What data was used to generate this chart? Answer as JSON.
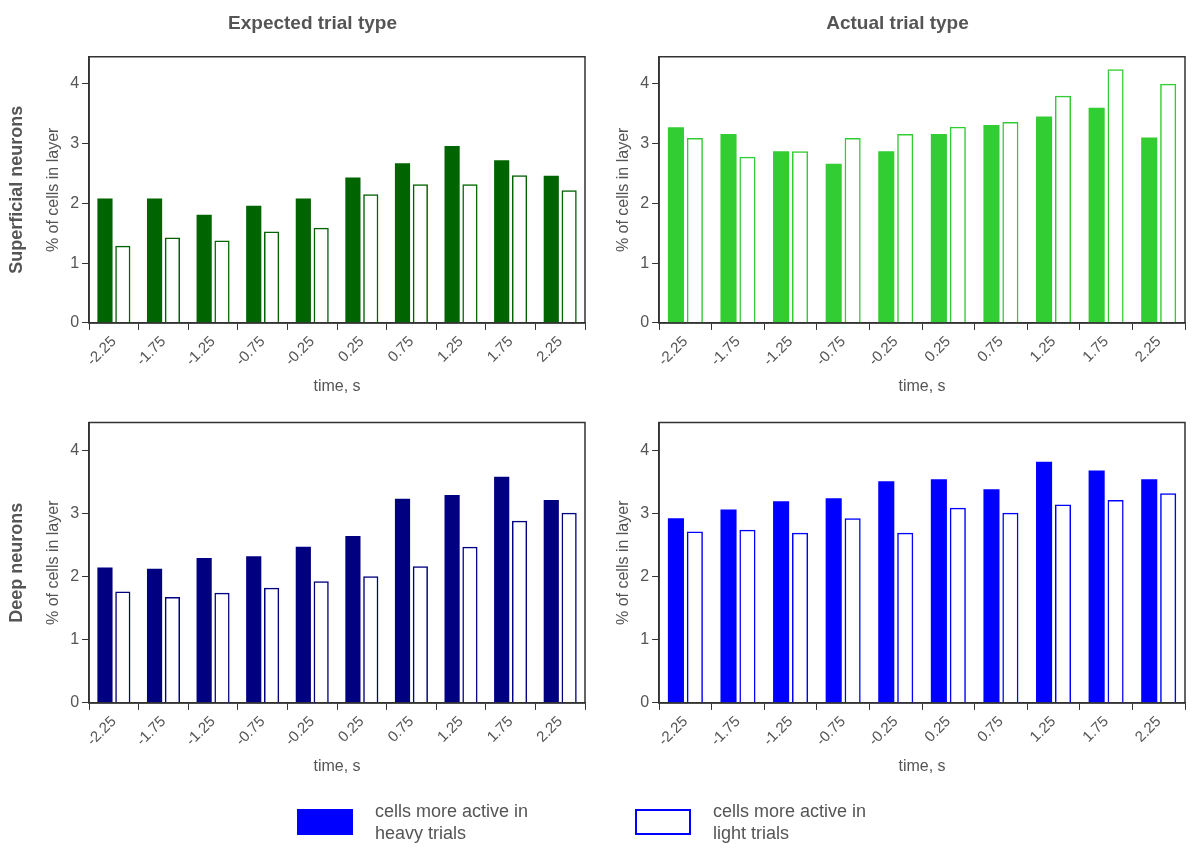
{
  "chart_data": [
    {
      "type": "bar",
      "title": "Expected trial type",
      "xlabel": "time, s",
      "ylabel": "% of cells in layer",
      "annotations": [
        "Superficial neurons"
      ],
      "categories": [
        "-2.25",
        "-1.75",
        "-1.25",
        "-0.75",
        "-0.25",
        "0.25",
        "0.75",
        "1.25",
        "1.75",
        "2.25"
      ],
      "series": [
        {
          "color": "#006400",
          "values": [
            2.08,
            2.08,
            1.81,
            1.96,
            2.08,
            2.43,
            2.67,
            2.96,
            2.72,
            2.46
          ]
        },
        {
          "color": "#006400",
          "values": [
            1.29,
            1.43,
            1.38,
            1.53,
            1.59,
            2.15,
            2.32,
            2.32,
            2.47,
            2.22
          ]
        }
      ],
      "ylim": [
        0,
        4.45
      ],
      "yticks": [
        0,
        1,
        2,
        3,
        4
      ],
      "grid": false
    },
    {
      "type": "bar",
      "title": "Actual trial type",
      "xlabel": "time, s",
      "ylabel": "% of cells in layer",
      "categories": [
        "-2.25",
        "-1.75",
        "-1.25",
        "-0.75",
        "-0.25",
        "0.25",
        "0.75",
        "1.25",
        "1.75",
        "2.25"
      ],
      "series": [
        {
          "color": "#32cd32",
          "values": [
            3.27,
            3.16,
            2.87,
            2.66,
            2.87,
            3.16,
            3.31,
            3.45,
            3.6,
            3.1
          ]
        },
        {
          "color": "#32cd32",
          "values": [
            3.09,
            2.78,
            2.87,
            3.09,
            3.16,
            3.28,
            3.36,
            3.8,
            4.24,
            4.0
          ]
        }
      ],
      "ylim": [
        0,
        4.45
      ],
      "yticks": [
        0,
        1,
        2,
        3,
        4
      ],
      "grid": false
    },
    {
      "type": "bar",
      "xlabel": "time, s",
      "ylabel": "% of cells in layer",
      "annotations": [
        "Deep neurons"
      ],
      "categories": [
        "-2.25",
        "-1.75",
        "-1.25",
        "-0.75",
        "-0.25",
        "0.25",
        "0.75",
        "1.25",
        "1.75",
        "2.25"
      ],
      "series": [
        {
          "color": "#000080",
          "values": [
            2.15,
            2.13,
            2.3,
            2.33,
            2.48,
            2.65,
            3.24,
            3.3,
            3.59,
            3.22
          ]
        },
        {
          "color": "#000080",
          "values": [
            1.77,
            1.68,
            1.75,
            1.83,
            1.93,
            2.01,
            2.17,
            2.48,
            2.89,
            3.02
          ]
        }
      ],
      "ylim": [
        0,
        4.45
      ],
      "yticks": [
        0,
        1,
        2,
        3,
        4
      ],
      "grid": false
    },
    {
      "type": "bar",
      "xlabel": "time, s",
      "ylabel": "% of cells in layer",
      "categories": [
        "-2.25",
        "-1.75",
        "-1.25",
        "-0.75",
        "-0.25",
        "0.25",
        "0.75",
        "1.25",
        "1.75",
        "2.25"
      ],
      "series": [
        {
          "name": "cells more active in heavy trials",
          "color": "#0000ff",
          "values": [
            2.93,
            3.07,
            3.2,
            3.25,
            3.52,
            3.55,
            3.39,
            3.83,
            3.69,
            3.55
          ]
        },
        {
          "name": "cells more active in light trials",
          "color": "#0000ff",
          "values": [
            2.72,
            2.75,
            2.7,
            2.93,
            2.7,
            3.1,
            3.02,
            3.15,
            3.22,
            3.33
          ]
        }
      ],
      "ylim": [
        0,
        4.45
      ],
      "yticks": [
        0,
        1,
        2,
        3,
        4
      ],
      "grid": false,
      "legend": "bottom"
    }
  ]
}
